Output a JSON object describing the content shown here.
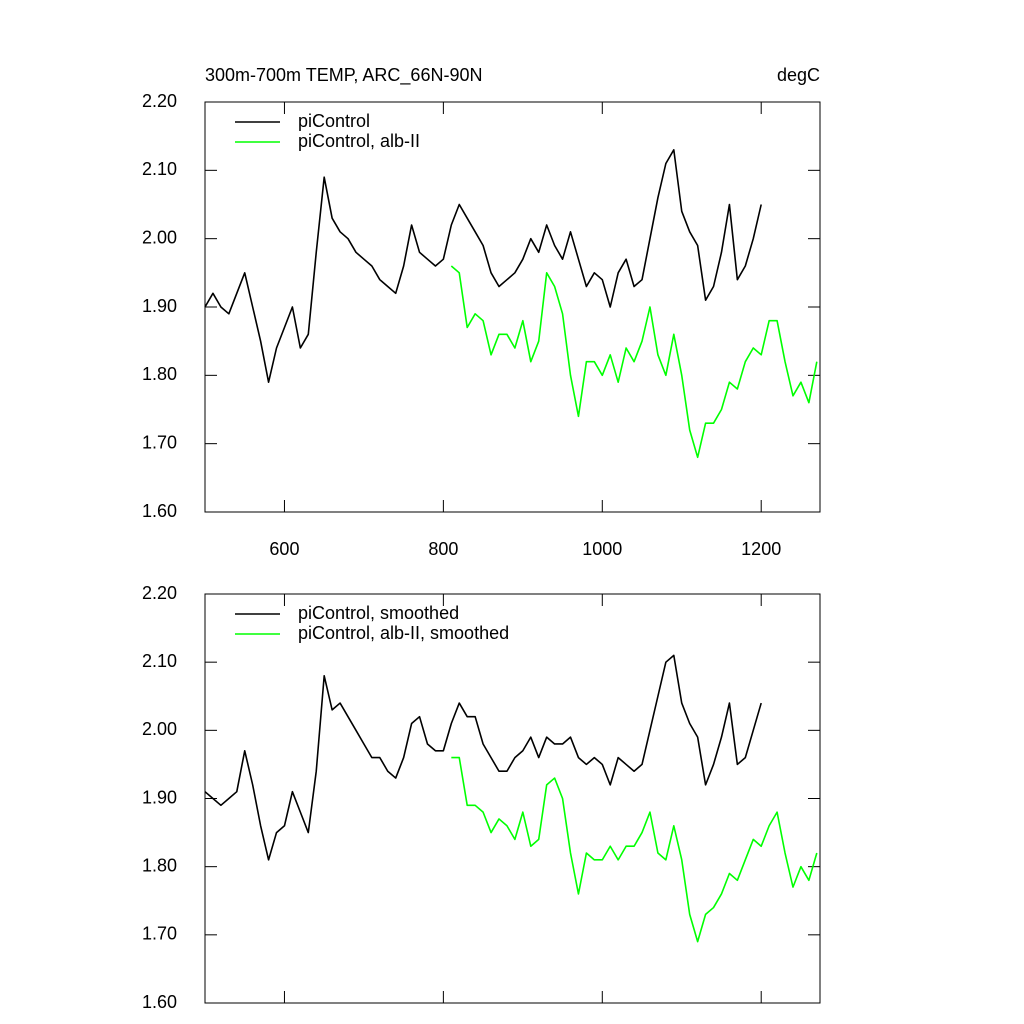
{
  "chart_data": [
    {
      "type": "line",
      "title": "300m-700m TEMP, ARC_66N-90N",
      "units": "degC",
      "legend": "upper left",
      "xlim": [
        500,
        1274
      ],
      "xticks": [
        600,
        800,
        1000,
        1200
      ],
      "ylim": [
        1.6,
        2.2
      ],
      "yticks": [
        {
          "value": 1.6,
          "label": "1.60"
        },
        {
          "value": 1.7,
          "label": "1.70"
        },
        {
          "value": 1.8,
          "label": "1.80"
        },
        {
          "value": 1.9,
          "label": "1.90"
        },
        {
          "value": 2.0,
          "label": "2.00"
        },
        {
          "value": 2.1,
          "label": "2.10"
        },
        {
          "value": 2.2,
          "label": "2.20"
        }
      ],
      "x": [
        500,
        510,
        520,
        530,
        540,
        550,
        560,
        570,
        580,
        590,
        600,
        610,
        620,
        630,
        640,
        650,
        660,
        670,
        680,
        690,
        700,
        710,
        720,
        730,
        740,
        750,
        760,
        770,
        780,
        790,
        800,
        810,
        820,
        830,
        840,
        850,
        860,
        870,
        880,
        890,
        900,
        910,
        920,
        930,
        940,
        950,
        960,
        970,
        980,
        990,
        1000,
        1010,
        1020,
        1030,
        1040,
        1050,
        1060,
        1070,
        1080,
        1090,
        1100,
        1110,
        1120,
        1130,
        1140,
        1150,
        1160,
        1170,
        1180,
        1190,
        1200,
        1210,
        1220,
        1230,
        1240,
        1250,
        1260,
        1270
      ],
      "series": [
        {
          "name": "piControl",
          "color": "#000000",
          "values": [
            1.9,
            1.92,
            1.9,
            1.89,
            1.92,
            1.95,
            1.9,
            1.85,
            1.79,
            1.84,
            1.87,
            1.9,
            1.84,
            1.86,
            1.98,
            2.09,
            2.03,
            2.01,
            2.0,
            1.98,
            1.97,
            1.96,
            1.94,
            1.93,
            1.92,
            1.96,
            2.02,
            1.98,
            1.97,
            1.96,
            1.97,
            2.02,
            2.05,
            2.03,
            2.01,
            1.99,
            1.95,
            1.93,
            1.94,
            1.95,
            1.97,
            2.0,
            1.98,
            2.02,
            1.99,
            1.97,
            2.01,
            1.97,
            1.93,
            1.95,
            1.94,
            1.9,
            1.95,
            1.97,
            1.93,
            1.94,
            2.0,
            2.06,
            2.11,
            2.13,
            2.04,
            2.01,
            1.99,
            1.91,
            1.93,
            1.98,
            2.05,
            1.94,
            1.96,
            2.0,
            2.05,
            null,
            null,
            null,
            null,
            null,
            null,
            null
          ]
        },
        {
          "name": "piControl, alb-II",
          "color": "#00ff00",
          "values": [
            null,
            null,
            null,
            null,
            null,
            null,
            null,
            null,
            null,
            null,
            null,
            null,
            null,
            null,
            null,
            null,
            null,
            null,
            null,
            null,
            null,
            null,
            null,
            null,
            null,
            null,
            null,
            null,
            null,
            null,
            null,
            1.96,
            1.95,
            1.87,
            1.89,
            1.88,
            1.83,
            1.86,
            1.86,
            1.84,
            1.88,
            1.82,
            1.85,
            1.95,
            1.93,
            1.89,
            1.8,
            1.74,
            1.82,
            1.82,
            1.8,
            1.83,
            1.79,
            1.84,
            1.82,
            1.85,
            1.9,
            1.83,
            1.8,
            1.86,
            1.8,
            1.72,
            1.68,
            1.73,
            1.73,
            1.75,
            1.79,
            1.78,
            1.82,
            1.84,
            1.83,
            1.88,
            1.88,
            1.82,
            1.77,
            1.79,
            1.76,
            1.82
          ]
        }
      ]
    },
    {
      "type": "line",
      "legend": "upper left",
      "xlim": [
        500,
        1274
      ],
      "xticks": [
        600,
        800,
        1000,
        1200
      ],
      "ylim": [
        1.6,
        2.2
      ],
      "yticks": [
        {
          "value": 1.6,
          "label": "1.60"
        },
        {
          "value": 1.7,
          "label": "1.70"
        },
        {
          "value": 1.8,
          "label": "1.80"
        },
        {
          "value": 1.9,
          "label": "1.90"
        },
        {
          "value": 2.0,
          "label": "2.00"
        },
        {
          "value": 2.1,
          "label": "2.10"
        },
        {
          "value": 2.2,
          "label": "2.20"
        }
      ],
      "x": [
        500,
        510,
        520,
        530,
        540,
        550,
        560,
        570,
        580,
        590,
        600,
        610,
        620,
        630,
        640,
        650,
        660,
        670,
        680,
        690,
        700,
        710,
        720,
        730,
        740,
        750,
        760,
        770,
        780,
        790,
        800,
        810,
        820,
        830,
        840,
        850,
        860,
        870,
        880,
        890,
        900,
        910,
        920,
        930,
        940,
        950,
        960,
        970,
        980,
        990,
        1000,
        1010,
        1020,
        1030,
        1040,
        1050,
        1060,
        1070,
        1080,
        1090,
        1100,
        1110,
        1120,
        1130,
        1140,
        1150,
        1160,
        1170,
        1180,
        1190,
        1200,
        1210,
        1220,
        1230,
        1240,
        1250,
        1260,
        1270
      ],
      "series": [
        {
          "name": "piControl, smoothed",
          "color": "#000000",
          "values": [
            1.91,
            1.9,
            1.89,
            1.9,
            1.91,
            1.97,
            1.92,
            1.86,
            1.81,
            1.85,
            1.86,
            1.91,
            1.88,
            1.85,
            1.94,
            2.08,
            2.03,
            2.04,
            2.02,
            2.0,
            1.98,
            1.96,
            1.96,
            1.94,
            1.93,
            1.96,
            2.01,
            2.02,
            1.98,
            1.97,
            1.97,
            2.01,
            2.04,
            2.02,
            2.02,
            1.98,
            1.96,
            1.94,
            1.94,
            1.96,
            1.97,
            1.99,
            1.96,
            1.99,
            1.98,
            1.98,
            1.99,
            1.96,
            1.95,
            1.96,
            1.95,
            1.92,
            1.96,
            1.95,
            1.94,
            1.95,
            2.0,
            2.05,
            2.1,
            2.11,
            2.04,
            2.01,
            1.99,
            1.92,
            1.95,
            1.99,
            2.04,
            1.95,
            1.96,
            2.0,
            2.04,
            null,
            null,
            null,
            null,
            null,
            null,
            null
          ]
        },
        {
          "name": "piControl, alb-II, smoothed",
          "color": "#00ff00",
          "values": [
            null,
            null,
            null,
            null,
            null,
            null,
            null,
            null,
            null,
            null,
            null,
            null,
            null,
            null,
            null,
            null,
            null,
            null,
            null,
            null,
            null,
            null,
            null,
            null,
            null,
            null,
            null,
            null,
            null,
            null,
            null,
            1.96,
            1.96,
            1.89,
            1.89,
            1.88,
            1.85,
            1.87,
            1.86,
            1.84,
            1.88,
            1.83,
            1.84,
            1.92,
            1.93,
            1.9,
            1.82,
            1.76,
            1.82,
            1.81,
            1.81,
            1.83,
            1.81,
            1.83,
            1.83,
            1.85,
            1.88,
            1.82,
            1.81,
            1.86,
            1.81,
            1.73,
            1.69,
            1.73,
            1.74,
            1.76,
            1.79,
            1.78,
            1.81,
            1.84,
            1.83,
            1.86,
            1.88,
            1.82,
            1.77,
            1.8,
            1.78,
            1.82
          ]
        }
      ]
    }
  ]
}
